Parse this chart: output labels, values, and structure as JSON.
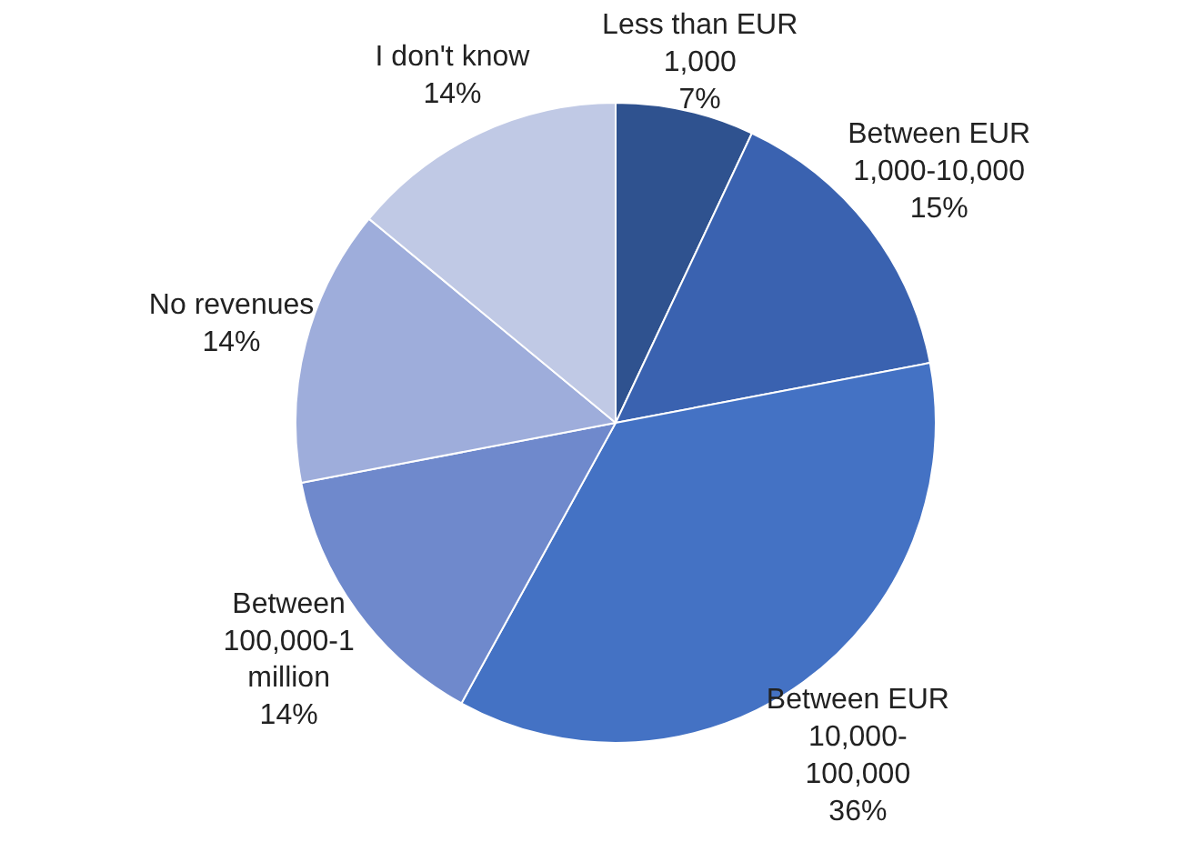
{
  "chart_data": {
    "type": "pie",
    "categories": [
      "Less than EUR\n1,000",
      "Between EUR\n1,000-10,000",
      "Between EUR\n10,000-\n100,000",
      "Between\n100,000-1\nmillion",
      "No revenues",
      "I don't know"
    ],
    "values": [
      7,
      15,
      36,
      14,
      14,
      14
    ],
    "value_labels": [
      "7%",
      "15%",
      "36%",
      "14%",
      "14%",
      "14%"
    ],
    "colors": [
      "#2f528f",
      "#3a62b0",
      "#4472c4",
      "#6f89cc",
      "#9eaddb",
      "#c0c9e5"
    ]
  }
}
